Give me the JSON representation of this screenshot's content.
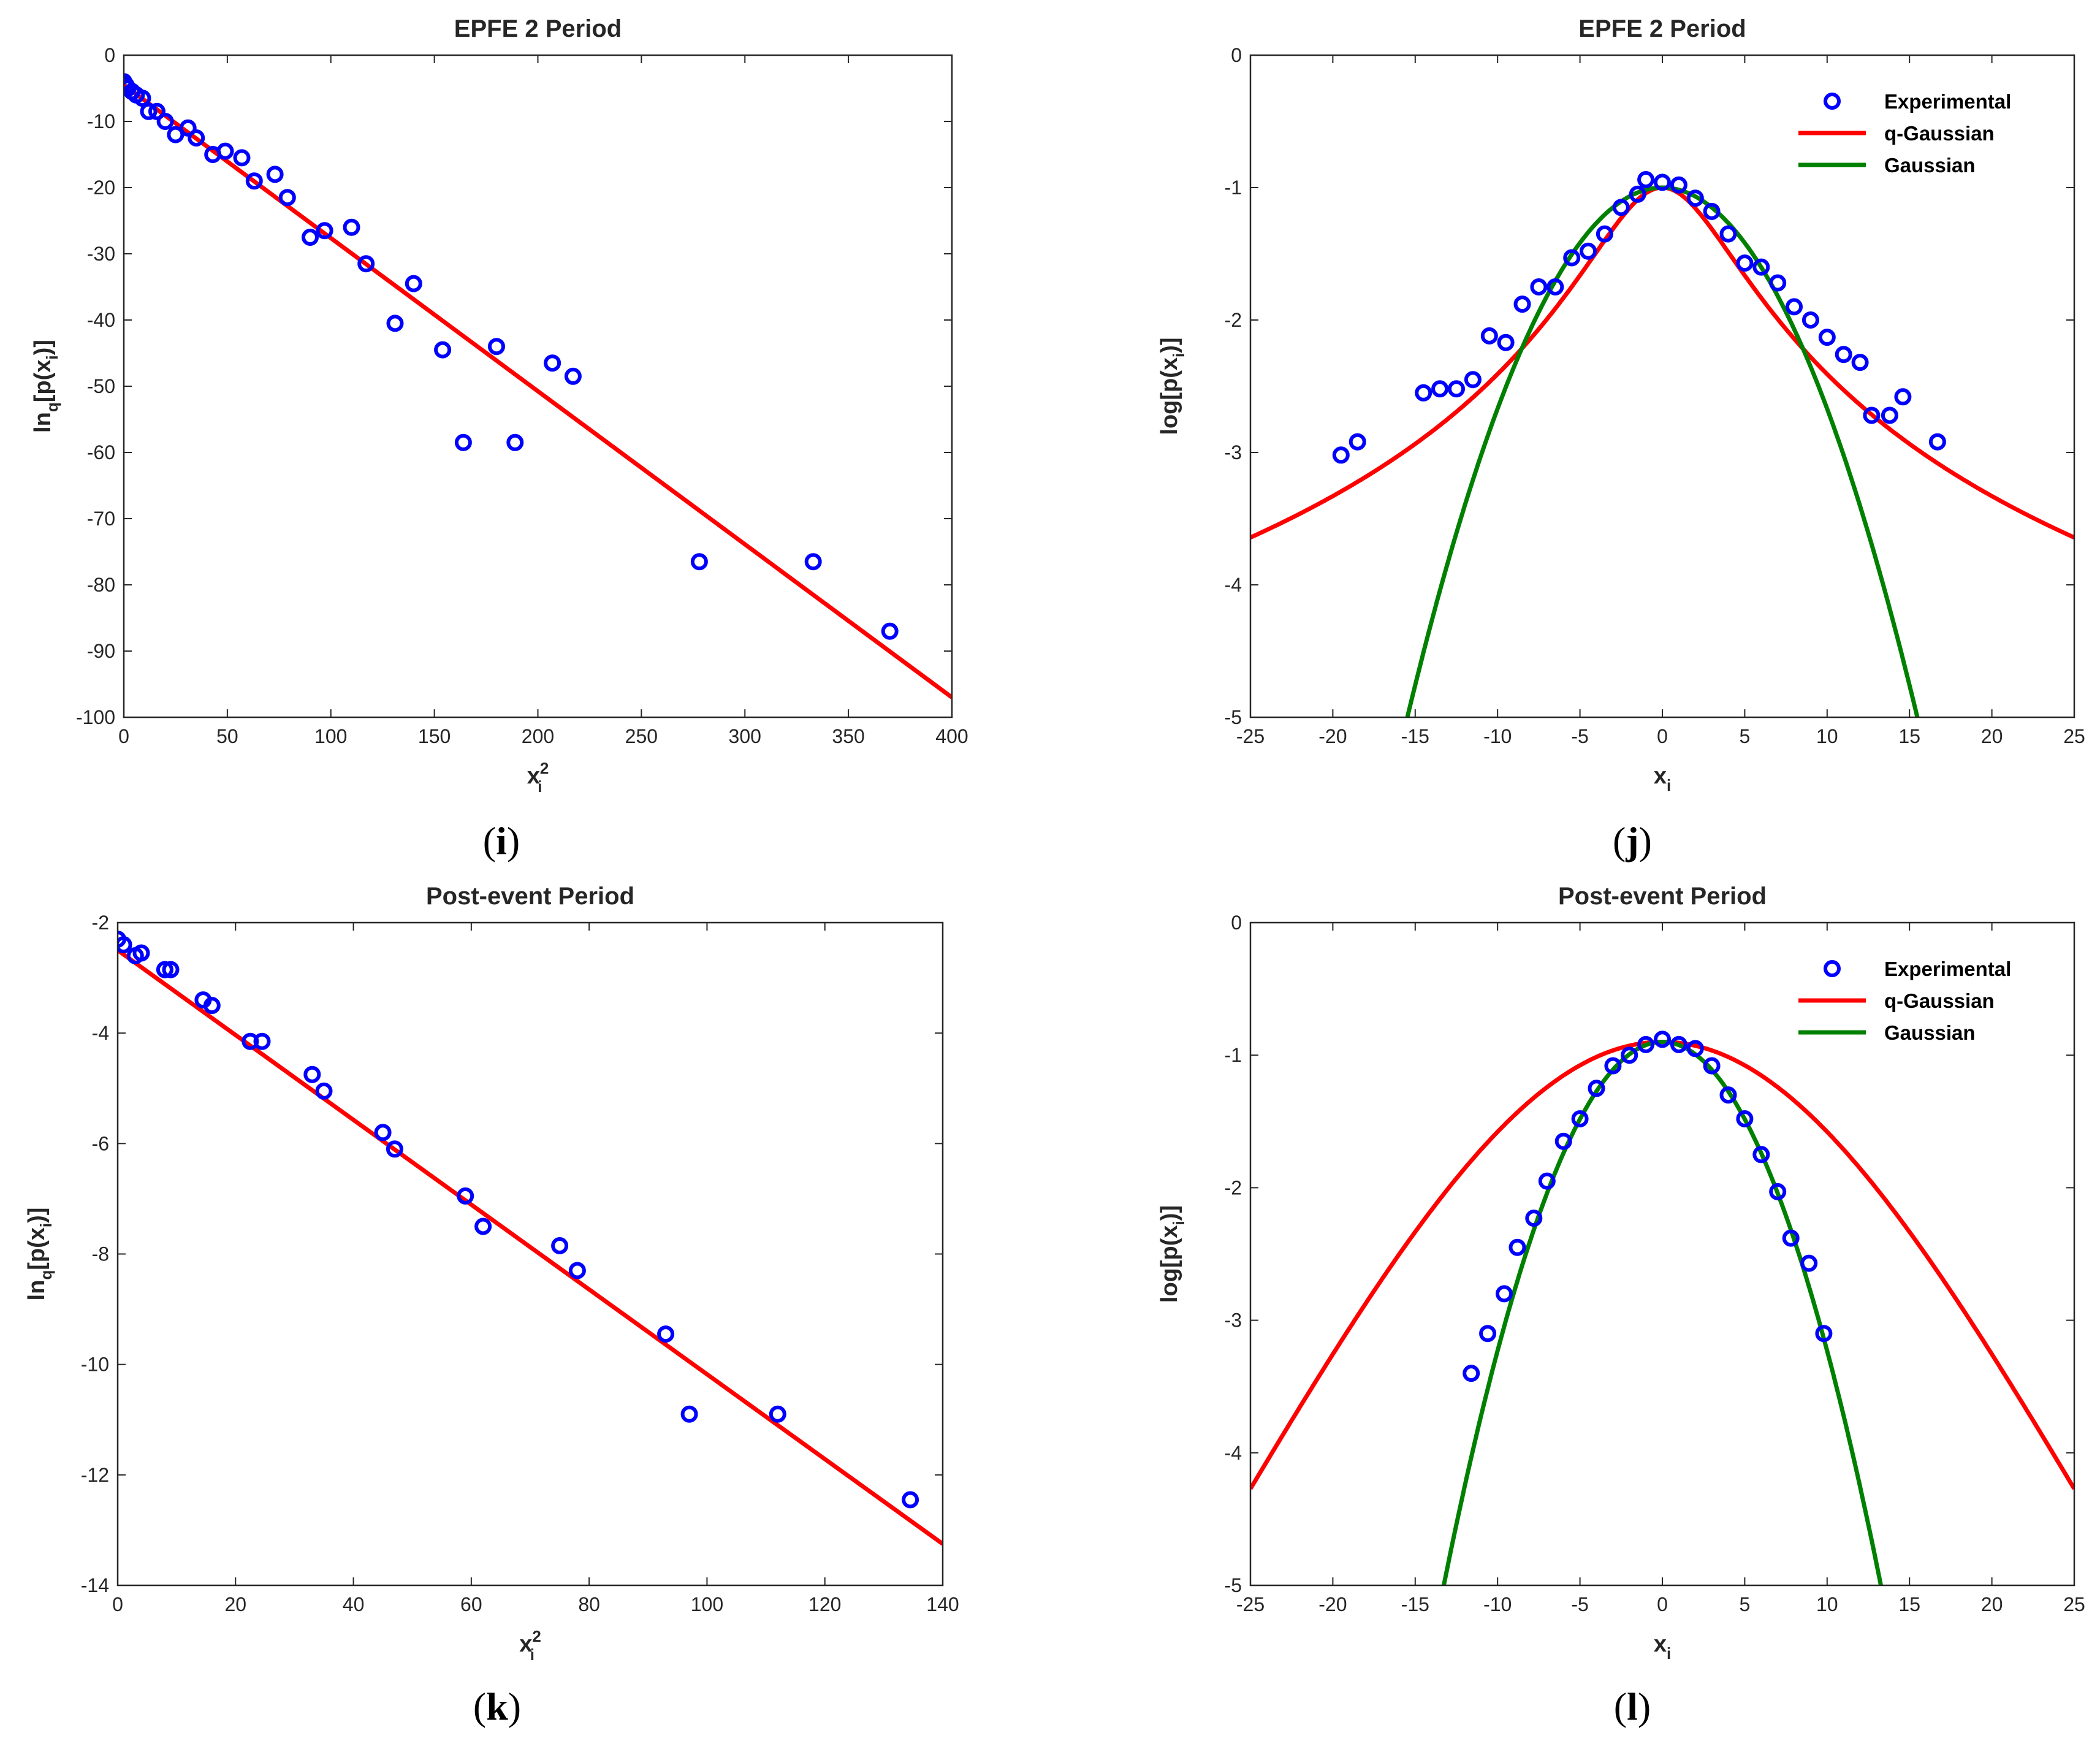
{
  "colors": {
    "experimental": "#0000ff",
    "q_gaussian": "#ff0000",
    "gaussian": "#008000",
    "axis": "#262626"
  },
  "chart_data": [
    {
      "type": "scatter",
      "panel": "i",
      "caption": {
        "open": "(",
        "letter": "i",
        "close": ")"
      },
      "title": "EPFE 2 Period",
      "xlabel": {
        "base": "x",
        "sub": "i",
        "sup": "2"
      },
      "ylabel": {
        "pre": "ln",
        "sub": "q",
        "post": "[p(x",
        "sub2": "i",
        "end": ")]"
      },
      "xlim": [
        0,
        400
      ],
      "ylim": [
        -100,
        0
      ],
      "xticks": [
        0,
        50,
        100,
        150,
        200,
        250,
        300,
        350,
        400
      ],
      "yticks": [
        -100,
        -90,
        -80,
        -70,
        -60,
        -50,
        -40,
        -30,
        -20,
        -10,
        0
      ],
      "series": [
        {
          "name": "Experimental",
          "kind": "markers",
          "color": "#0000ff",
          "x": [
            0,
            1,
            2,
            4,
            6,
            9,
            12,
            16,
            20,
            25,
            31,
            35,
            43,
            49,
            57,
            63,
            73,
            79,
            90,
            97,
            110,
            117,
            131,
            140,
            154,
            164,
            180,
            189,
            207,
            217,
            278,
            333,
            370
          ],
          "y": [
            -4,
            -4.5,
            -5,
            -5.5,
            -6,
            -6.5,
            -8.5,
            -8.5,
            -10,
            -12,
            -11,
            -12.5,
            -15,
            -14.5,
            -15.5,
            -19,
            -18,
            -21.5,
            -27.5,
            -26.5,
            -26,
            -31.5,
            -40.5,
            -34.5,
            -44.5,
            -58.5,
            -44,
            -58.5,
            -46.5,
            -48.5,
            -76.5,
            -76.5,
            -87
          ]
        },
        {
          "name": "q-Gaussian fit",
          "kind": "line",
          "color": "#ff0000",
          "x": [
            0,
            400
          ],
          "y": [
            -4.5,
            -97
          ]
        }
      ]
    },
    {
      "type": "line",
      "panel": "j",
      "caption": {
        "open": "(",
        "letter": "j",
        "close": ")"
      },
      "title": "EPFE 2 Period",
      "xlabel": {
        "base": "x",
        "sub": "i"
      },
      "ylabel": {
        "pre": "log[p(x",
        "sub": "i",
        "post": ")]"
      },
      "xlim": [
        -25,
        25
      ],
      "ylim": [
        -5,
        0
      ],
      "xticks": [
        -25,
        -20,
        -15,
        -10,
        -5,
        0,
        5,
        10,
        15,
        20,
        25
      ],
      "yticks": [
        -5,
        -4,
        -3,
        -2,
        -1,
        0
      ],
      "legend": [
        "Experimental",
        "q-Gaussian",
        "Gaussian"
      ],
      "q_gaussian": {
        "peak": -1,
        "k": 0.1,
        "q": 1.6
      },
      "gaussian": {
        "peak": -1,
        "a": 0.0167
      },
      "series": [
        {
          "name": "Experimental",
          "kind": "markers",
          "color": "#0000ff",
          "x": [
            -19.5,
            -18.5,
            -14.5,
            -13.5,
            -12.5,
            -11.5,
            -10.5,
            -9.5,
            -8.5,
            -7.5,
            -6.5,
            -5.5,
            -4.5,
            -3.5,
            -2.5,
            -1.5,
            -1,
            0,
            1,
            2,
            3,
            4,
            5,
            6,
            7,
            8,
            9,
            10,
            11,
            12,
            12.7,
            13.8,
            14.6,
            16.7
          ],
          "y": [
            -3.02,
            -2.92,
            -2.55,
            -2.52,
            -2.52,
            -2.45,
            -2.12,
            -2.17,
            -1.88,
            -1.75,
            -1.75,
            -1.53,
            -1.48,
            -1.35,
            -1.15,
            -1.05,
            -0.94,
            -0.96,
            -0.98,
            -1.08,
            -1.18,
            -1.35,
            -1.57,
            -1.6,
            -1.72,
            -1.9,
            -2.0,
            -2.13,
            -2.26,
            -2.32,
            -2.72,
            -2.72,
            -2.58,
            -2.92
          ]
        },
        {
          "name": "q-Gaussian",
          "kind": "line",
          "color": "#ff0000"
        },
        {
          "name": "Gaussian",
          "kind": "line",
          "color": "#008000"
        }
      ]
    },
    {
      "type": "scatter",
      "panel": "k",
      "caption": {
        "open": "(",
        "letter": "k",
        "close": ")"
      },
      "title": "Post-event Period",
      "xlabel": {
        "base": "x",
        "sub": "i",
        "sup": "2"
      },
      "ylabel": {
        "pre": "ln",
        "sub": "q",
        "post": "[p(x",
        "sub2": "i",
        "end": ")]"
      },
      "xlim": [
        0,
        140
      ],
      "ylim": [
        -14,
        -2
      ],
      "xticks": [
        0,
        20,
        40,
        60,
        80,
        100,
        120,
        140
      ],
      "yticks": [
        -14,
        -12,
        -10,
        -8,
        -6,
        -4,
        -2
      ],
      "series": [
        {
          "name": "Experimental",
          "kind": "markers",
          "color": "#0000ff",
          "x": [
            0,
            1,
            3,
            4,
            8,
            9,
            14.5,
            16,
            22.5,
            24.5,
            33,
            35,
            45,
            47,
            59,
            62,
            75,
            78,
            93,
            97,
            112,
            134.5
          ],
          "y": [
            -2.3,
            -2.4,
            -2.6,
            -2.55,
            -2.85,
            -2.85,
            -3.4,
            -3.5,
            -4.15,
            -4.15,
            -4.75,
            -5.05,
            -5.8,
            -6.1,
            -6.95,
            -7.5,
            -7.85,
            -8.3,
            -9.45,
            -10.9,
            -10.9,
            -12.45
          ]
        },
        {
          "name": "q-Gaussian fit",
          "kind": "line",
          "color": "#ff0000",
          "x": [
            0,
            140
          ],
          "y": [
            -2.5,
            -13.25
          ]
        }
      ]
    },
    {
      "type": "line",
      "panel": "l",
      "caption": {
        "open": "(",
        "letter": "l",
        "close": ")"
      },
      "title": "Post-event Period",
      "xlabel": {
        "base": "x",
        "sub": "i"
      },
      "ylabel": {
        "pre": "log[p(x",
        "sub": "i",
        "post": ")]"
      },
      "xlim": [
        -25,
        25
      ],
      "ylim": [
        -5,
        0
      ],
      "xticks": [
        -25,
        -20,
        -15,
        -10,
        -5,
        0,
        5,
        10,
        15,
        20,
        25
      ],
      "yticks": [
        -5,
        -4,
        -3,
        -2,
        -1,
        0
      ],
      "legend": [
        "Experimental",
        "q-Gaussian",
        "Gaussian"
      ],
      "q_gaussian": {
        "peak": -0.9,
        "k": 0.0165,
        "q": 1.07
      },
      "gaussian": {
        "peak": -0.9,
        "a": 0.0233
      },
      "series": [
        {
          "name": "Experimental",
          "kind": "markers",
          "color": "#0000ff",
          "x": [
            -11.6,
            -10.6,
            -9.6,
            -8.8,
            -7.8,
            -7,
            -6,
            -5,
            -4,
            -3,
            -2,
            -1,
            0,
            1,
            2,
            3,
            4,
            5,
            6,
            7,
            7.8,
            8.9,
            9.8
          ],
          "y": [
            -3.4,
            -3.1,
            -2.8,
            -2.45,
            -2.23,
            -1.95,
            -1.65,
            -1.48,
            -1.25,
            -1.08,
            -1.0,
            -0.92,
            -0.88,
            -0.92,
            -0.95,
            -1.08,
            -1.3,
            -1.48,
            -1.75,
            -2.03,
            -2.38,
            -2.57,
            -3.1
          ]
        },
        {
          "name": "q-Gaussian",
          "kind": "line",
          "color": "#ff0000"
        },
        {
          "name": "Gaussian",
          "kind": "line",
          "color": "#008000"
        }
      ]
    }
  ]
}
